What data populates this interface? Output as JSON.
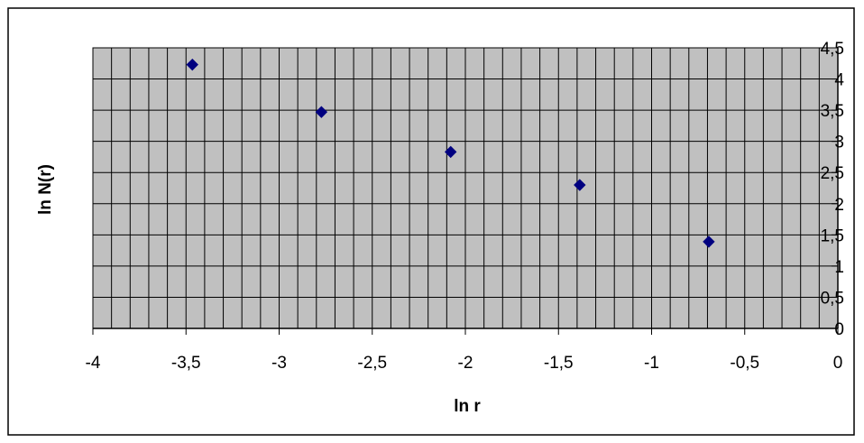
{
  "chart_data": {
    "type": "scatter",
    "title": "",
    "xlabel": "ln r",
    "ylabel": "ln N(r)",
    "xlim": [
      -4,
      0
    ],
    "ylim": [
      0,
      4.5
    ],
    "x_ticks": [
      "-4",
      "-3,5",
      "-3",
      "-2,5",
      "-2",
      "-1,5",
      "-1",
      "-0,5",
      "0"
    ],
    "y_ticks": [
      "0",
      "0,5",
      "1",
      "1,5",
      "2",
      "2,5",
      "3",
      "3,5",
      "4",
      "4,5"
    ],
    "grid": true,
    "legend": "none",
    "colors": {
      "plot_background": "#c0c0c0",
      "grid": "#000000",
      "marker": "#000080"
    },
    "series": [
      {
        "marker": "diamond",
        "x": [
          -3.466,
          -2.773,
          -2.079,
          -1.386,
          -0.693
        ],
        "y": [
          4.23,
          3.47,
          2.83,
          2.3,
          1.39
        ]
      }
    ]
  }
}
